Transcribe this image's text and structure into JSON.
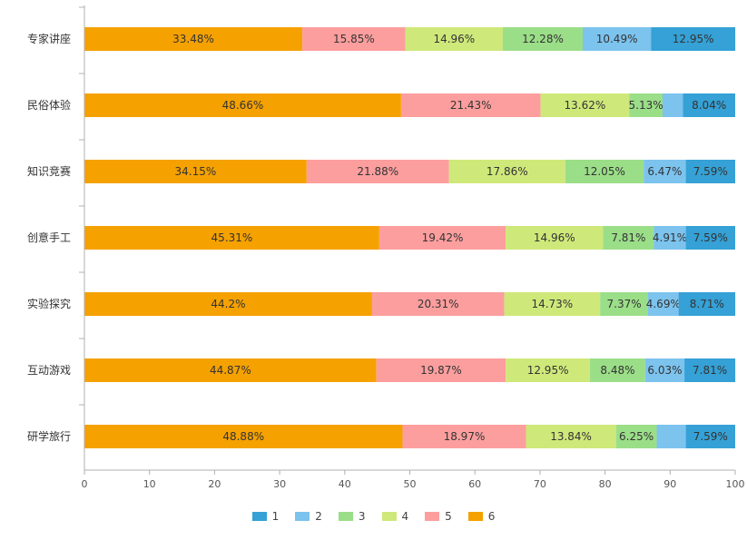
{
  "chart_data": {
    "type": "bar",
    "orientation": "horizontal",
    "stacked": true,
    "categories": [
      "专家讲座",
      "民俗体验",
      "知识竞赛",
      "创意手工",
      "实验探究",
      "互动游戏",
      "研学旅行"
    ],
    "xlim": [
      0,
      100
    ],
    "xticks": [
      "0",
      "10",
      "20",
      "30",
      "40",
      "50",
      "60",
      "70",
      "80",
      "90",
      "100"
    ],
    "grid": false,
    "legend_position": "bottom",
    "series": [
      {
        "name": "6",
        "color": "#f5a100",
        "values": [
          33.48,
          48.66,
          34.15,
          45.31,
          44.2,
          44.87,
          48.88
        ],
        "labels": [
          "33.48%",
          "48.66%",
          "34.15%",
          "45.31%",
          "44.2%",
          "44.87%",
          "48.88%"
        ]
      },
      {
        "name": "5",
        "color": "#fc9e9e",
        "values": [
          15.85,
          21.43,
          21.88,
          19.42,
          20.31,
          19.87,
          18.97
        ],
        "labels": [
          "15.85%",
          "21.43%",
          "21.88%",
          "19.42%",
          "20.31%",
          "19.87%",
          "18.97%"
        ]
      },
      {
        "name": "4",
        "color": "#cfe87a",
        "values": [
          14.96,
          13.62,
          17.86,
          14.96,
          14.73,
          12.95,
          13.84
        ],
        "labels": [
          "14.96%",
          "13.62%",
          "17.86%",
          "14.96%",
          "14.73%",
          "12.95%",
          "13.84%"
        ]
      },
      {
        "name": "3",
        "color": "#9bde88",
        "values": [
          12.28,
          5.13,
          12.05,
          7.81,
          7.37,
          8.48,
          6.25
        ],
        "labels": [
          "12.28%",
          "5.13%",
          "12.05%",
          "7.81%",
          "7.37%",
          "8.48%",
          "6.25%"
        ]
      },
      {
        "name": "2",
        "color": "#7cc3ee",
        "values": [
          10.49,
          3.12,
          6.47,
          4.91,
          4.69,
          6.03,
          4.47
        ],
        "labels": [
          "10.49%",
          "",
          "6.47%",
          "4.91%",
          "4.69%",
          "6.03%",
          ""
        ]
      },
      {
        "name": "1",
        "color": "#35a1d6",
        "values": [
          12.95,
          8.04,
          7.59,
          7.59,
          8.71,
          7.81,
          7.59
        ],
        "labels": [
          "12.95%",
          "8.04%",
          "7.59%",
          "7.59%",
          "8.71%",
          "7.81%",
          "7.59%"
        ]
      }
    ],
    "legend": [
      {
        "name": "1",
        "color": "#35a1d6"
      },
      {
        "name": "2",
        "color": "#7cc3ee"
      },
      {
        "name": "3",
        "color": "#9bde88"
      },
      {
        "name": "4",
        "color": "#cfe87a"
      },
      {
        "name": "5",
        "color": "#fc9e9e"
      },
      {
        "name": "6",
        "color": "#f5a100"
      }
    ]
  }
}
